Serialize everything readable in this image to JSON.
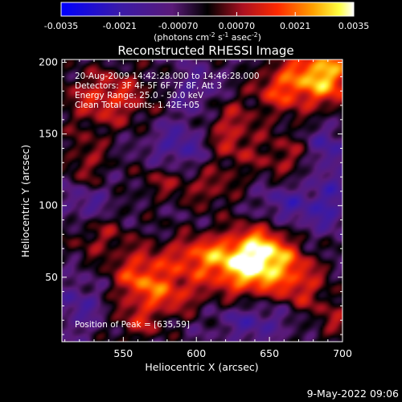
{
  "chart_data": {
    "type": "heatmap",
    "title": "Reconstructed RHESSI Image",
    "xlabel": "Heliocentric X (arcsec)",
    "ylabel": "Heliocentric Y (arcsec)",
    "xlim": [
      508,
      700
    ],
    "ylim": [
      5,
      202
    ],
    "x_ticks": [
      550,
      600,
      650,
      700
    ],
    "y_ticks": [
      50,
      100,
      150,
      200
    ],
    "colorbar": {
      "label_main": "(photons cm",
      "exp1": "-2",
      "mid1": " s",
      "exp2": "-1",
      "mid2": " asec",
      "exp3": "-2",
      "label_end": ")",
      "range": [
        -0.0035,
        0.0035
      ],
      "tick_labels": [
        "-0.0035",
        "-0.0021",
        "-0.00070",
        "0.00070",
        "0.0021",
        "0.0035"
      ]
    },
    "info_lines": [
      "20-Aug-2009 14:42:28.000 to 14:46:28.000",
      "Detectors: 3F 4F 5F 6F 7F 8F, Att 3",
      "Energy Range: 25.0 - 50.0 keV",
      "Clean    Total counts: 1.42E+05"
    ],
    "peak_label": "Position of Peak = [635,59]",
    "peak": [
      635,
      59
    ],
    "sources": [
      {
        "x": 636,
        "y": 58,
        "amp": 0.0034,
        "sx": 20,
        "sy": 15
      },
      {
        "x": 648,
        "y": 72,
        "amp": 0.0018,
        "sx": 14,
        "sy": 14
      },
      {
        "x": 600,
        "y": 65,
        "amp": 0.0018,
        "sx": 16,
        "sy": 10
      },
      {
        "x": 562,
        "y": 50,
        "amp": 0.0022,
        "sx": 14,
        "sy": 14
      },
      {
        "x": 585,
        "y": 38,
        "amp": 0.0015,
        "sx": 14,
        "sy": 10
      },
      {
        "x": 532,
        "y": 80,
        "amp": 0.0012,
        "sx": 14,
        "sy": 12
      },
      {
        "x": 622,
        "y": 150,
        "amp": 0.0016,
        "sx": 14,
        "sy": 18
      },
      {
        "x": 688,
        "y": 192,
        "amp": 0.0032,
        "sx": 16,
        "sy": 16
      },
      {
        "x": 658,
        "y": 182,
        "amp": 0.0018,
        "sx": 13,
        "sy": 12
      },
      {
        "x": 540,
        "y": 175,
        "amp": 0.0018,
        "sx": 22,
        "sy": 14
      },
      {
        "x": 580,
        "y": 118,
        "amp": 0.0012,
        "sx": 14,
        "sy": 10
      },
      {
        "x": 672,
        "y": 45,
        "amp": 0.0014,
        "sx": 12,
        "sy": 14
      },
      {
        "x": 660,
        "y": 130,
        "amp": 0.0013,
        "sx": 14,
        "sy": 14
      },
      {
        "x": 525,
        "y": 130,
        "amp": 0.0012,
        "sx": 10,
        "sy": 14
      },
      {
        "x": 610,
        "y": 112,
        "amp": 0.001,
        "sx": 12,
        "sy": 10
      },
      {
        "x": 695,
        "y": 20,
        "amp": 0.001,
        "sx": 10,
        "sy": 12
      },
      {
        "x": 560,
        "y": 18,
        "amp": 0.0012,
        "sx": 12,
        "sy": 10
      },
      {
        "x": 660,
        "y": 100,
        "amp": -0.0014,
        "sx": 14,
        "sy": 16
      },
      {
        "x": 590,
        "y": 140,
        "amp": -0.0014,
        "sx": 16,
        "sy": 14
      },
      {
        "x": 525,
        "y": 100,
        "amp": -0.0012,
        "sx": 12,
        "sy": 12
      },
      {
        "x": 690,
        "y": 140,
        "amp": -0.0012,
        "sx": 10,
        "sy": 14
      },
      {
        "x": 600,
        "y": 180,
        "amp": -0.001,
        "sx": 14,
        "sy": 12
      },
      {
        "x": 640,
        "y": 20,
        "amp": -0.0012,
        "sx": 18,
        "sy": 10
      },
      {
        "x": 690,
        "y": 100,
        "amp": -0.0012,
        "sx": 10,
        "sy": 14
      },
      {
        "x": 520,
        "y": 30,
        "amp": -0.001,
        "sx": 12,
        "sy": 14
      }
    ]
  },
  "footer": {
    "timestamp": "9-May-2022 09:06"
  }
}
